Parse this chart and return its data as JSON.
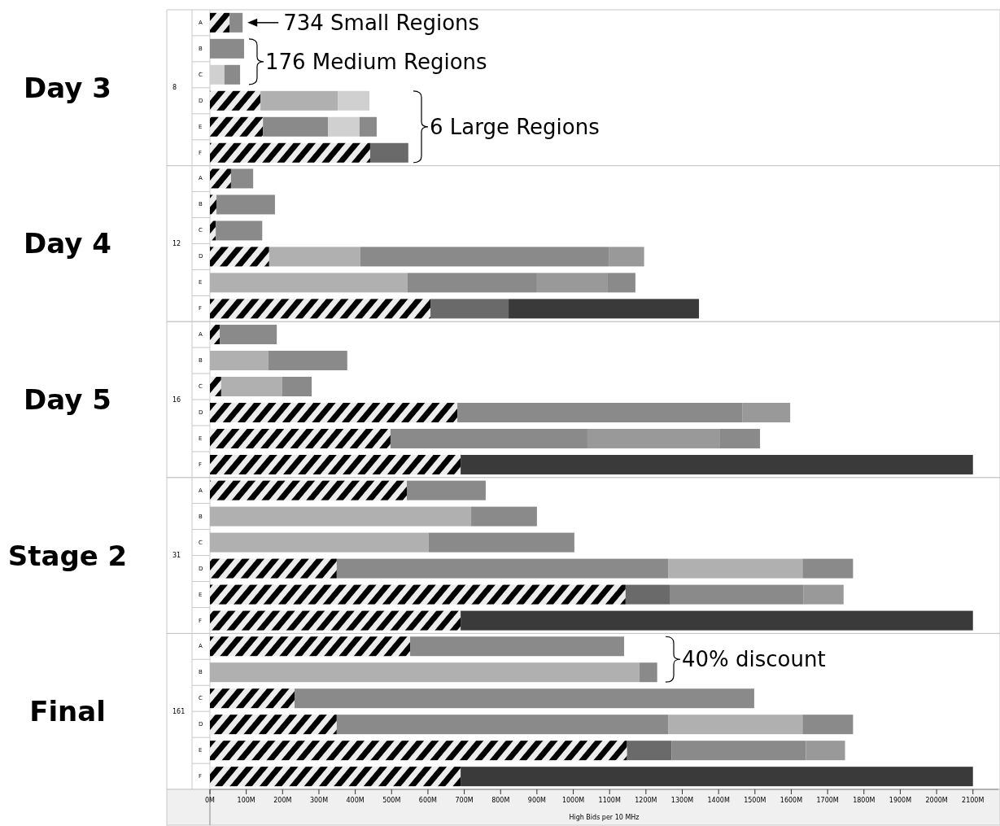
{
  "chart_data": [
    {
      "type": "bar",
      "orientation": "horizontal",
      "stacked": true,
      "title": "Day 3",
      "subtitle": "8",
      "categories": [
        "A",
        "B",
        "C",
        "D",
        "E",
        "F"
      ],
      "tick_labels": "y",
      "xlim": [
        0,
        2170
      ],
      "series": [
        {
          "color": "#000000",
          "values": [
            54,
            null,
            null,
            139,
            146,
            441
          ]
        },
        {
          "colors": [
            "#8a8a8a",
            "#8a8a8a",
            "#d0d0d0",
            "#b0b0b0",
            "#8a8a8a",
            "#6a6a6a"
          ],
          "values": [
            36,
            94,
            40,
            213,
            179,
            105
          ]
        },
        {
          "colors": [
            null,
            null,
            "#8a8a8a",
            "#d0d0d0",
            "#d0d0d0",
            null
          ],
          "values": [
            null,
            null,
            43,
            87,
            87,
            null
          ]
        },
        {
          "colors": [
            null,
            null,
            null,
            null,
            "#8a8a8a",
            null
          ],
          "values": [
            null,
            null,
            null,
            null,
            47,
            null
          ]
        }
      ],
      "annotations": [
        {
          "text": "734 Small Regions",
          "x": 90,
          "y": "A"
        },
        {
          "text": "176 Medium Regions",
          "x": 94,
          "y": "B"
        },
        "6 Large Regions"
      ]
    },
    {
      "type": "bar",
      "orientation": "horizontal",
      "stacked": true,
      "title": "Day 4",
      "subtitle": "12",
      "categories": [
        "A",
        "B",
        "C",
        "D",
        "E",
        "F"
      ],
      "tick_labels": "y",
      "xlim": [
        0,
        2170
      ],
      "series": [
        {
          "color": "#000000",
          "values": [
            58,
            18,
            16,
            163,
            null,
            607
          ]
        },
        {
          "colors": [
            "#8a8a8a",
            "#8a8a8a",
            "#8a8a8a",
            "#b0b0b0",
            "#b0b0b0",
            "#6a6a6a"
          ],
          "values": [
            61,
            161,
            128,
            251,
            544,
            215
          ]
        },
        {
          "colors": [
            null,
            null,
            null,
            "#8a8a8a",
            "#8a8a8a",
            "#3a3a3a"
          ],
          "values": [
            null,
            null,
            null,
            685,
            356,
            524
          ]
        },
        {
          "colors": [
            null,
            null,
            null,
            "#999999",
            "#999999",
            null
          ],
          "values": [
            null,
            null,
            null,
            96,
            195,
            null
          ]
        },
        {
          "colors": [
            null,
            null,
            null,
            null,
            "#8a8a8a",
            null
          ],
          "values": [
            null,
            null,
            null,
            null,
            76,
            null
          ]
        }
      ]
    },
    {
      "type": "bar",
      "orientation": "horizontal",
      "stacked": true,
      "title": "Day 5",
      "subtitle": "16",
      "categories": [
        "A",
        "B",
        "C",
        "D",
        "E",
        "F"
      ],
      "tick_labels": "y",
      "xlim": [
        0,
        2170
      ],
      "series": [
        {
          "color": "#000000",
          "values": [
            27,
            null,
            31,
            681,
            497,
            690
          ]
        },
        {
          "colors": [
            "#8a8a8a",
            "#b0b0b0",
            "#b0b0b0",
            "#8a8a8a",
            "#8a8a8a",
            "#3a3a3a"
          ],
          "values": [
            157,
            161,
            168,
            784,
            542,
            1410
          ]
        },
        {
          "colors": [
            null,
            "#8a8a8a",
            "#8a8a8a",
            "#999999",
            "#999999",
            null
          ],
          "values": [
            null,
            217,
            81,
            132,
            365,
            null
          ]
        },
        {
          "colors": [
            null,
            null,
            null,
            null,
            "#8a8a8a",
            null
          ],
          "values": [
            null,
            null,
            null,
            null,
            110,
            null
          ]
        }
      ]
    },
    {
      "type": "bar",
      "orientation": "horizontal",
      "stacked": true,
      "title": "Stage 2",
      "subtitle": "31",
      "categories": [
        "A",
        "B",
        "C",
        "D",
        "E",
        "F"
      ],
      "tick_labels": "y",
      "xlim": [
        0,
        2170
      ],
      "series": [
        {
          "color": "#000000",
          "values": [
            542,
            null,
            null,
            349,
            1144,
            690
          ]
        },
        {
          "colors": [
            "#8a8a8a",
            "#b0b0b0",
            "#b0b0b0",
            "#8a8a8a",
            "#6a6a6a",
            "#3a3a3a"
          ],
          "values": [
            217,
            719,
            602,
            913,
            123,
            1410
          ]
        },
        {
          "colors": [
            null,
            "#8a8a8a",
            "#8a8a8a",
            "#b0b0b0",
            "#8a8a8a",
            null
          ],
          "values": [
            null,
            181,
            401,
            369,
            367,
            null
          ]
        },
        {
          "colors": [
            null,
            null,
            null,
            "#8a8a8a",
            "#999999",
            null
          ],
          "values": [
            null,
            null,
            null,
            139,
            110,
            null
          ]
        }
      ]
    },
    {
      "type": "bar",
      "orientation": "horizontal",
      "stacked": true,
      "title": "Final",
      "subtitle": "161",
      "categories": [
        "A",
        "B",
        "C",
        "D",
        "E",
        "F"
      ],
      "xlabel": "High Bids per 10 MHz",
      "xlim": [
        0,
        2170
      ],
      "xticks": [
        {
          "value": 0,
          "label": "0M"
        },
        {
          "value": 100,
          "label": "100M"
        },
        {
          "value": 200,
          "label": "200M"
        },
        {
          "value": 300,
          "label": "300M"
        },
        {
          "value": 400,
          "label": "400M"
        },
        {
          "value": 500,
          "label": "500M"
        },
        {
          "value": 600,
          "label": "600M"
        },
        {
          "value": 700,
          "label": "700M"
        },
        {
          "value": 800,
          "label": "800M"
        },
        {
          "value": 900,
          "label": "900M"
        },
        {
          "value": 1000,
          "label": "1000M"
        },
        {
          "value": 1100,
          "label": "1100M"
        },
        {
          "value": 1200,
          "label": "1200M"
        },
        {
          "value": 1300,
          "label": "1300M"
        },
        {
          "value": 1400,
          "label": "1400M"
        },
        {
          "value": 1500,
          "label": "1500M"
        },
        {
          "value": 1600,
          "label": "1600M"
        },
        {
          "value": 1700,
          "label": "1700M"
        },
        {
          "value": 1800,
          "label": "1800M"
        },
        {
          "value": 1900,
          "label": "1900M"
        },
        {
          "value": 2000,
          "label": "2000M"
        },
        {
          "value": 2100,
          "label": "2100M"
        }
      ],
      "series": [
        {
          "color": "#000000",
          "values": [
            551,
            null,
            233,
            349,
            1148,
            690
          ]
        },
        {
          "colors": [
            "#8a8a8a",
            "#b0b0b0",
            "#8a8a8a",
            "#8a8a8a",
            "#6a6a6a",
            "#3a3a3a"
          ],
          "values": [
            589,
            1182,
            1265,
            913,
            123,
            1410
          ]
        },
        {
          "colors": [
            null,
            "#8a8a8a",
            null,
            "#b0b0b0",
            "#8a8a8a",
            null
          ],
          "values": [
            null,
            49,
            null,
            369,
            369,
            null
          ]
        },
        {
          "colors": [
            null,
            null,
            null,
            "#8a8a8a",
            "#999999",
            null
          ],
          "values": [
            null,
            null,
            null,
            139,
            108,
            null
          ]
        }
      ],
      "annotations": [
        "40% discount"
      ]
    }
  ]
}
